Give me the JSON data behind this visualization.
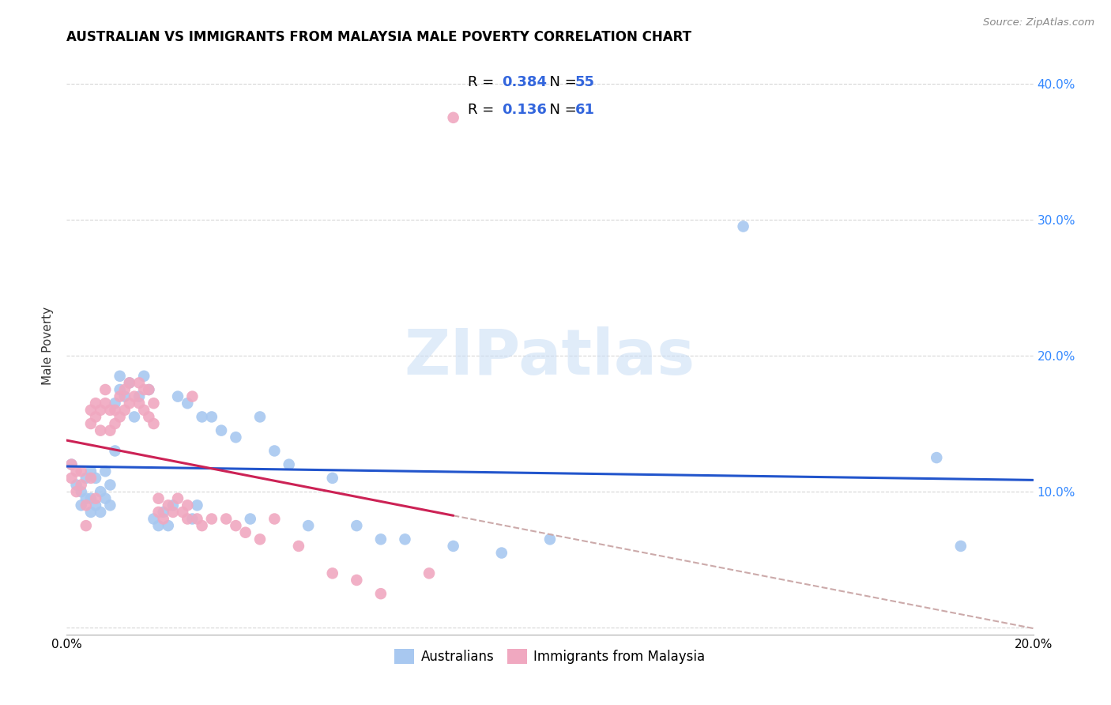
{
  "title": "AUSTRALIAN VS IMMIGRANTS FROM MALAYSIA MALE POVERTY CORRELATION CHART",
  "source": "Source: ZipAtlas.com",
  "ylabel": "Male Poverty",
  "watermark": "ZIPatlas",
  "australians_color": "#a8c8f0",
  "malaysia_color": "#f0a8c0",
  "trend_aus_color": "#2255cc",
  "trend_mal_color": "#cc2255",
  "dashed_color": "#ccaaaa",
  "xlim": [
    0.0,
    0.2
  ],
  "ylim": [
    -0.005,
    0.42
  ],
  "yticks": [
    0.0,
    0.1,
    0.2,
    0.3,
    0.4
  ],
  "xticks": [
    0.0,
    0.05,
    0.1,
    0.15,
    0.2
  ],
  "aus_x": [
    0.001,
    0.002,
    0.003,
    0.003,
    0.004,
    0.004,
    0.005,
    0.005,
    0.005,
    0.006,
    0.006,
    0.007,
    0.007,
    0.008,
    0.008,
    0.009,
    0.009,
    0.01,
    0.01,
    0.011,
    0.011,
    0.012,
    0.013,
    0.014,
    0.015,
    0.016,
    0.017,
    0.018,
    0.019,
    0.02,
    0.021,
    0.022,
    0.023,
    0.025,
    0.026,
    0.027,
    0.028,
    0.03,
    0.032,
    0.035,
    0.038,
    0.04,
    0.043,
    0.046,
    0.05,
    0.055,
    0.06,
    0.065,
    0.07,
    0.08,
    0.09,
    0.1,
    0.14,
    0.18,
    0.185
  ],
  "aus_y": [
    0.12,
    0.105,
    0.1,
    0.09,
    0.11,
    0.095,
    0.115,
    0.095,
    0.085,
    0.11,
    0.09,
    0.1,
    0.085,
    0.115,
    0.095,
    0.105,
    0.09,
    0.13,
    0.165,
    0.185,
    0.175,
    0.17,
    0.18,
    0.155,
    0.17,
    0.185,
    0.175,
    0.08,
    0.075,
    0.085,
    0.075,
    0.09,
    0.17,
    0.165,
    0.08,
    0.09,
    0.155,
    0.155,
    0.145,
    0.14,
    0.08,
    0.155,
    0.13,
    0.12,
    0.075,
    0.11,
    0.075,
    0.065,
    0.065,
    0.06,
    0.055,
    0.065,
    0.295,
    0.125,
    0.06
  ],
  "mal_x": [
    0.001,
    0.001,
    0.002,
    0.002,
    0.003,
    0.003,
    0.004,
    0.004,
    0.005,
    0.005,
    0.005,
    0.006,
    0.006,
    0.006,
    0.007,
    0.007,
    0.008,
    0.008,
    0.009,
    0.009,
    0.01,
    0.01,
    0.011,
    0.011,
    0.012,
    0.012,
    0.013,
    0.013,
    0.014,
    0.015,
    0.015,
    0.016,
    0.016,
    0.017,
    0.017,
    0.018,
    0.018,
    0.019,
    0.019,
    0.02,
    0.021,
    0.022,
    0.023,
    0.024,
    0.025,
    0.025,
    0.026,
    0.027,
    0.028,
    0.03,
    0.033,
    0.035,
    0.037,
    0.04,
    0.043,
    0.048,
    0.055,
    0.06,
    0.065,
    0.075,
    0.08
  ],
  "mal_y": [
    0.12,
    0.11,
    0.115,
    0.1,
    0.115,
    0.105,
    0.09,
    0.075,
    0.16,
    0.15,
    0.11,
    0.165,
    0.155,
    0.095,
    0.16,
    0.145,
    0.175,
    0.165,
    0.16,
    0.145,
    0.16,
    0.15,
    0.17,
    0.155,
    0.175,
    0.16,
    0.18,
    0.165,
    0.17,
    0.18,
    0.165,
    0.175,
    0.16,
    0.175,
    0.155,
    0.165,
    0.15,
    0.095,
    0.085,
    0.08,
    0.09,
    0.085,
    0.095,
    0.085,
    0.09,
    0.08,
    0.17,
    0.08,
    0.075,
    0.08,
    0.08,
    0.075,
    0.07,
    0.065,
    0.08,
    0.06,
    0.04,
    0.035,
    0.025,
    0.04,
    0.375
  ]
}
